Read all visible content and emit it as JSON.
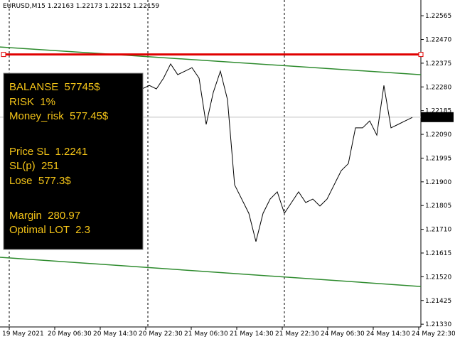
{
  "chart_data": {
    "type": "line",
    "title": "EURUSD,M15  1.22163 1.22173 1.22152 1.22159",
    "ylim": [
      1.21319,
      1.22628
    ],
    "yticks": [
      1.22565,
      {
        "value": 1.2247,
        "label": "1.22470"
      },
      1.22375,
      {
        "value": 1.2228,
        "label": "1.22280"
      },
      1.22185,
      {
        "value": 1.2209,
        "label": "1.22090"
      },
      1.21995,
      {
        "value": 1.219,
        "label": "1.21900"
      },
      1.21805,
      {
        "value": 1.2171,
        "label": "1.21710"
      },
      1.21615,
      {
        "value": 1.2152,
        "label": "1.21520"
      },
      1.21425,
      {
        "value": 1.2133,
        "label": "1.21330"
      }
    ],
    "xlabels": [
      "19 May 2021",
      "20 May 06:30",
      "20 May 14:30",
      "20 May 22:30",
      "21 May 06:30",
      "21 May 14:30",
      "21 May 22:30",
      "24 May 06:30",
      "24 May 14:30",
      "24 May 22:30"
    ],
    "series": [
      {
        "color": "#000000",
        "values": [
          1.22272,
          1.22286,
          1.22272,
          1.22315,
          1.22372,
          1.22329,
          1.22343,
          1.22357,
          1.22315,
          1.2213,
          1.22258,
          1.22343,
          1.22229,
          1.21888,
          1.21831,
          1.21774,
          1.21661,
          1.21774,
          1.21831,
          1.2186,
          1.21774,
          1.21817,
          1.2186,
          1.21817,
          1.21831,
          1.21803,
          1.21831,
          1.21888,
          1.21945,
          1.21973,
          1.22116,
          1.22116,
          1.22144,
          1.22087,
          1.22286,
          1.22116,
          1.2213,
          1.22144,
          1.22158
        ]
      }
    ],
    "stop_line": 1.2241,
    "stop_color": "#e00000",
    "trendlines": [
      {
        "start": 1.2244,
        "end": 1.22329
      },
      {
        "start": 1.21598,
        "end": 1.21481
      }
    ],
    "trend_color": "#2e8b2e",
    "last_price": 1.22159
  },
  "panel": {
    "lines": [
      "BALANSE  57745$",
      "RISK  1%",
      "Money_risk  577.45$",
      "Price SL  1.2241",
      "SL(p)  251",
      "Lose  577.3$",
      "Margin  280.97",
      "Optimal LOT  2.3"
    ]
  }
}
